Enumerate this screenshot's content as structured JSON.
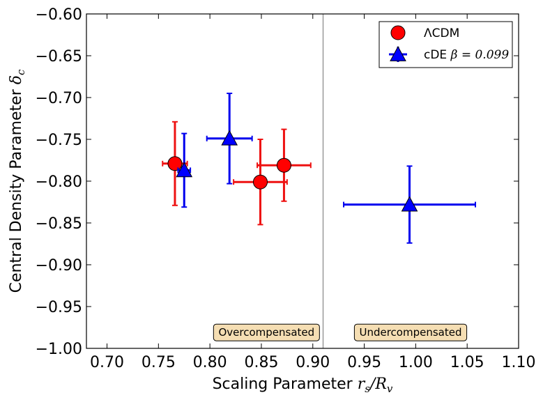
{
  "chart_data": {
    "type": "scatter",
    "title": "",
    "xlabel": "Scaling Parameter",
    "xlabel_math": "r_s/R_v",
    "ylabel": "Central Density Parameter",
    "ylabel_math": "δ_c",
    "xlim": [
      0.68,
      1.1
    ],
    "ylim": [
      -1.0,
      -0.6
    ],
    "x_ticks": [
      0.7,
      0.75,
      0.8,
      0.85,
      0.9,
      0.95,
      1.0,
      1.05,
      1.1
    ],
    "x_tick_labels": [
      "0.70",
      "0.75",
      "0.80",
      "0.85",
      "0.90",
      "0.95",
      "1.00",
      "1.05",
      "1.10"
    ],
    "y_ticks": [
      -0.6,
      -0.65,
      -0.7,
      -0.75,
      -0.8,
      -0.85,
      -0.9,
      -0.95,
      -1.0
    ],
    "y_tick_labels": [
      "−0.60",
      "−0.65",
      "−0.70",
      "−0.75",
      "−0.80",
      "−0.85",
      "−0.90",
      "−0.95",
      "−1.00"
    ],
    "vertical_line_x": 0.91,
    "vertical_line_color": "#999999",
    "legend_position": "top-right",
    "series": [
      {
        "name": "ΛCDM",
        "marker": "circle",
        "color": "#ff0000",
        "error_color": "#ee1111",
        "points": [
          {
            "x": 0.766,
            "y": -0.779,
            "xerr": 0.012,
            "yerr": 0.05
          },
          {
            "x": 0.849,
            "y": -0.801,
            "xerr": 0.026,
            "yerr": 0.051
          },
          {
            "x": 0.872,
            "y": -0.781,
            "xerr": 0.026,
            "yerr": 0.043
          }
        ]
      },
      {
        "name": "cDE",
        "name_math": "β = 0.099",
        "marker": "triangle",
        "color": "#0000ff",
        "error_color": "#0000ee",
        "points": [
          {
            "x": 0.775,
            "y": -0.787,
            "xerr": 0.006,
            "yerr": 0.044
          },
          {
            "x": 0.819,
            "y": -0.749,
            "xerr": 0.022,
            "yerr": 0.054
          },
          {
            "x": 0.994,
            "y": -0.828,
            "xerr": 0.064,
            "yerr": 0.046
          }
        ]
      }
    ],
    "annotations": [
      {
        "text": "Overcompensated",
        "x": 0.855,
        "y": -0.981
      },
      {
        "text": "Undercompensated",
        "x": 0.995,
        "y": -0.981
      }
    ],
    "annotation_box_color": "#f5deb3"
  }
}
